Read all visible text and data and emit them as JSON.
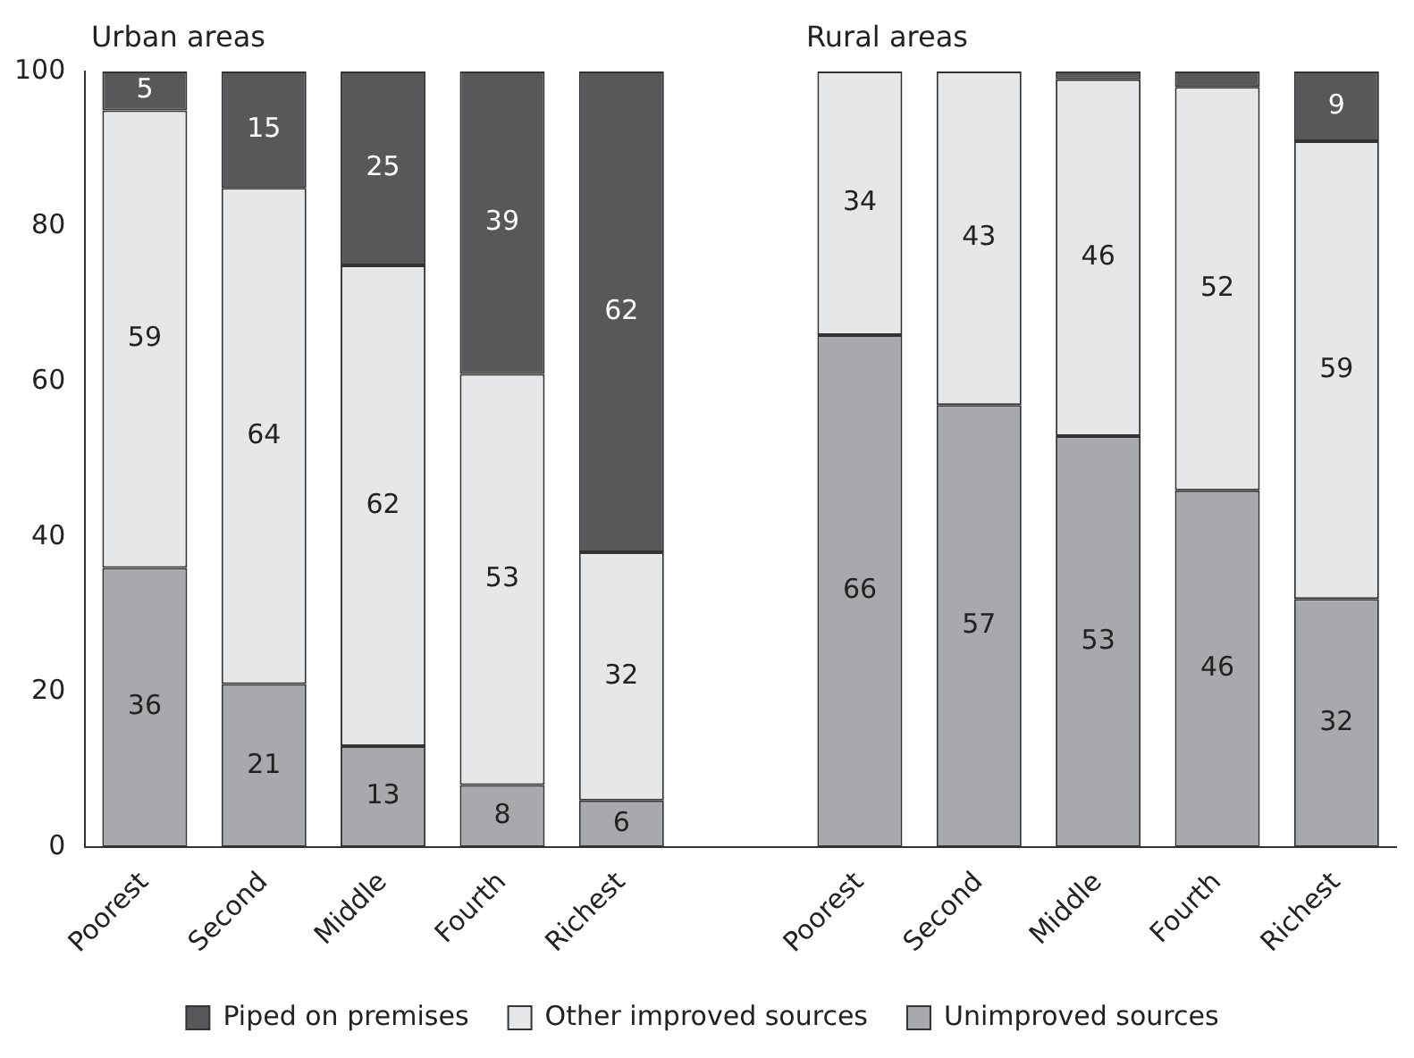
{
  "chart_data": {
    "type": "bar",
    "stacked": true,
    "categories": [
      "Poorest",
      "Second",
      "Middle",
      "Fourth",
      "Richest",
      null,
      "Poorest",
      "Second",
      "Middle",
      "Fourth",
      "Richest"
    ],
    "series": [
      {
        "name": "Unimproved sources",
        "color": "#a7a9ac",
        "values": [
          36,
          21,
          13,
          8,
          6,
          null,
          66,
          57,
          53,
          46,
          32
        ],
        "value_labels": [
          "36",
          "21",
          "13",
          "8",
          "6",
          null,
          "66",
          "57",
          "53",
          "46",
          "32"
        ]
      },
      {
        "name": "Other improved sources",
        "color": "#e6e7e8",
        "values": [
          59,
          64,
          62,
          53,
          32,
          null,
          34,
          43,
          46,
          52,
          59
        ],
        "value_labels": [
          "59",
          "64",
          "62",
          "53",
          "32",
          null,
          "34",
          "43",
          "46",
          "52",
          "59"
        ]
      },
      {
        "name": "Piped on premises",
        "color": "#58585a",
        "values": [
          5,
          15,
          25,
          39,
          62,
          null,
          0,
          0,
          1,
          2,
          9
        ],
        "value_labels": [
          "5",
          "15",
          "25",
          "39",
          "62",
          null,
          null,
          null,
          null,
          null,
          "9"
        ]
      }
    ],
    "ylim": [
      0,
      100
    ],
    "yticks": [
      0,
      20,
      40,
      60,
      80,
      100
    ],
    "grid": false,
    "legend": "bottom",
    "annotations": [
      "Urban areas",
      "Rural areas"
    ]
  }
}
